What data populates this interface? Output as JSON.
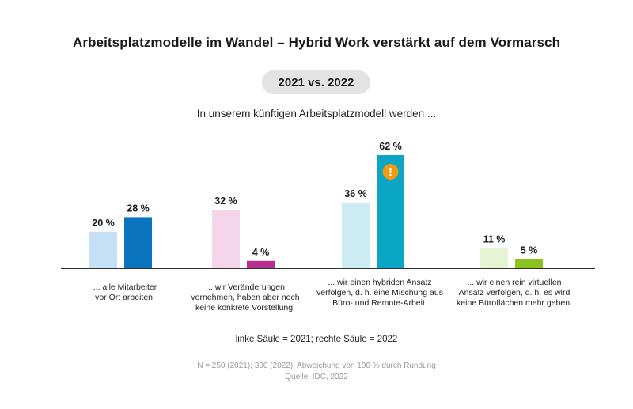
{
  "chart_data": {
    "type": "bar",
    "title": "Arbeitsplatzmodelle im Wandel – Hybrid Work verstärkt auf dem Vormarsch",
    "subtitle_pill": "2021 vs. 2022",
    "subtitle": "In unserem künftigen Arbeitsplatzmodell werden ...",
    "categories": [
      [
        "... alle Mitarbeiter",
        "vor Ort arbeiten."
      ],
      [
        "... wir Veränderungen",
        "vornehmen, haben aber noch",
        "keine konkrete Vorstellung."
      ],
      [
        "... wir einen hybriden Ansatz",
        "verfolgen, d. h. eine Mischung aus",
        "Büro- und Remote-Arbeit."
      ],
      [
        "... wir einen rein virtuellen",
        "Ansatz verfolgen, d. h. es wird",
        "keine Büroflächen mehr geben."
      ]
    ],
    "series": [
      {
        "name": "2021",
        "values": [
          20,
          32,
          36,
          11
        ],
        "colors": [
          "#c6e1f5",
          "#f5d5ea",
          "#cdebf2",
          "#e6f4d3"
        ]
      },
      {
        "name": "2022",
        "values": [
          28,
          4,
          62,
          5
        ],
        "colors": [
          "#0b74bf",
          "#b5308e",
          "#0aa6c4",
          "#8cc21e"
        ]
      }
    ],
    "value_labels": [
      [
        "20 %",
        "32 %",
        "36 %",
        "11 %"
      ],
      [
        "28 %",
        "4 %",
        "62 %",
        "5 %"
      ]
    ],
    "ylim": [
      0,
      62
    ],
    "highlight": {
      "series": 1,
      "category": 2,
      "icon": "exclamation-icon",
      "symbol": "!",
      "color": "#f39a12"
    },
    "legend": "linke Säule = 2021; rechte Säule = 2022",
    "footnote": [
      "N = 250 (2021); 300 (2022); Abweichung von 100 % durch Rundung",
      "Quelle: IDC, 2022"
    ],
    "axis_color": "#333333"
  }
}
